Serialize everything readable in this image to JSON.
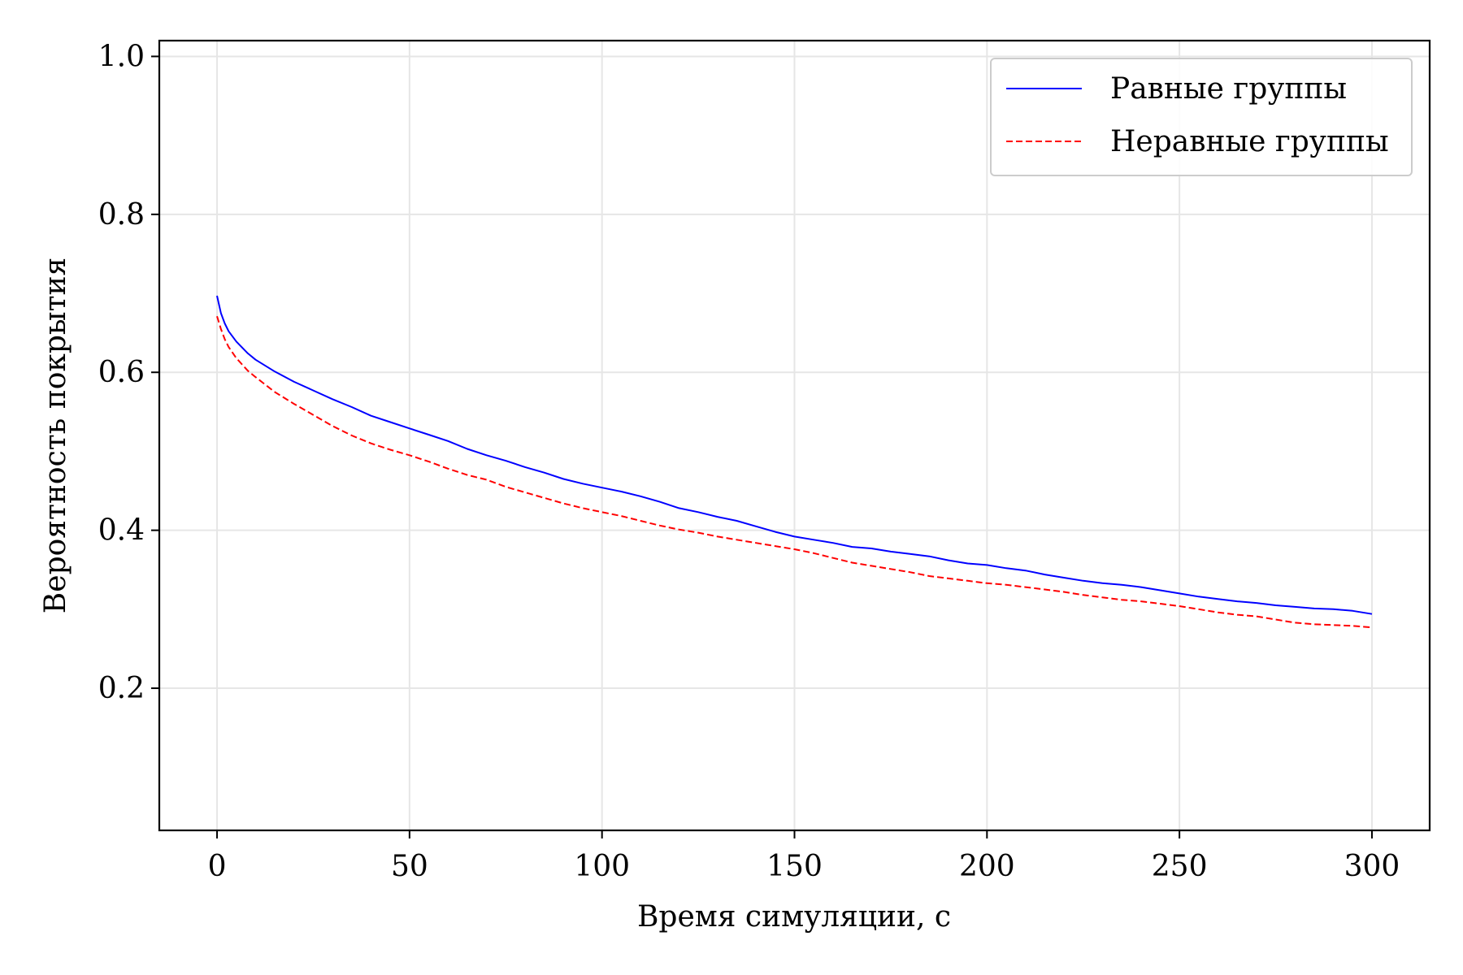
{
  "chart_data": {
    "type": "line",
    "title": "",
    "xlabel": "Время симуляции, с",
    "ylabel": "Вероятность покрытия",
    "xlim": [
      -15,
      315
    ],
    "ylim": [
      0.02,
      1.02
    ],
    "xticks": [
      0,
      50,
      100,
      150,
      200,
      250,
      300
    ],
    "xtick_labels": [
      "0",
      "50",
      "100",
      "150",
      "200",
      "250",
      "300"
    ],
    "yticks": [
      0.2,
      0.4,
      0.6,
      0.8,
      1.0
    ],
    "ytick_labels": [
      "0.2",
      "0.4",
      "0.6",
      "0.8",
      "1.0"
    ],
    "grid": true,
    "legend_position": "top-right",
    "series": [
      {
        "name": "Равные группы",
        "color": "#0000ff",
        "style": "solid",
        "x": [
          0,
          1,
          2,
          3,
          5,
          8,
          10,
          15,
          20,
          25,
          30,
          35,
          40,
          45,
          50,
          55,
          60,
          65,
          70,
          75,
          80,
          85,
          90,
          95,
          100,
          105,
          110,
          115,
          120,
          125,
          130,
          135,
          140,
          145,
          150,
          155,
          160,
          165,
          170,
          175,
          180,
          185,
          190,
          195,
          200,
          205,
          210,
          215,
          220,
          225,
          230,
          235,
          240,
          245,
          250,
          255,
          260,
          265,
          270,
          275,
          280,
          285,
          290,
          295,
          300
        ],
        "y": [
          0.697,
          0.675,
          0.662,
          0.652,
          0.639,
          0.624,
          0.616,
          0.601,
          0.588,
          0.577,
          0.566,
          0.556,
          0.545,
          0.537,
          0.529,
          0.521,
          0.513,
          0.503,
          0.495,
          0.488,
          0.48,
          0.473,
          0.465,
          0.459,
          0.454,
          0.449,
          0.443,
          0.436,
          0.428,
          0.423,
          0.417,
          0.412,
          0.405,
          0.398,
          0.392,
          0.388,
          0.384,
          0.379,
          0.377,
          0.373,
          0.37,
          0.367,
          0.362,
          0.358,
          0.356,
          0.352,
          0.349,
          0.344,
          0.34,
          0.336,
          0.333,
          0.331,
          0.328,
          0.324,
          0.32,
          0.316,
          0.313,
          0.31,
          0.308,
          0.305,
          0.303,
          0.301,
          0.3,
          0.298,
          0.294
        ]
      },
      {
        "name": "Неравные группы",
        "color": "#ff0000",
        "style": "dashed",
        "x": [
          0,
          1,
          2,
          3,
          5,
          8,
          10,
          15,
          20,
          25,
          30,
          35,
          40,
          45,
          50,
          55,
          60,
          65,
          70,
          75,
          80,
          85,
          90,
          95,
          100,
          105,
          110,
          115,
          120,
          125,
          130,
          135,
          140,
          145,
          150,
          155,
          160,
          165,
          170,
          175,
          180,
          185,
          190,
          195,
          200,
          205,
          210,
          215,
          220,
          225,
          230,
          235,
          240,
          245,
          250,
          255,
          260,
          265,
          270,
          275,
          280,
          285,
          290,
          295,
          300
        ],
        "y": [
          0.671,
          0.655,
          0.642,
          0.632,
          0.618,
          0.602,
          0.594,
          0.575,
          0.56,
          0.546,
          0.532,
          0.52,
          0.51,
          0.502,
          0.495,
          0.487,
          0.478,
          0.47,
          0.464,
          0.455,
          0.448,
          0.441,
          0.434,
          0.428,
          0.423,
          0.418,
          0.412,
          0.406,
          0.401,
          0.397,
          0.392,
          0.388,
          0.384,
          0.38,
          0.376,
          0.371,
          0.365,
          0.359,
          0.355,
          0.351,
          0.347,
          0.342,
          0.339,
          0.336,
          0.333,
          0.331,
          0.328,
          0.325,
          0.322,
          0.318,
          0.315,
          0.312,
          0.31,
          0.307,
          0.304,
          0.3,
          0.296,
          0.293,
          0.291,
          0.287,
          0.283,
          0.281,
          0.28,
          0.279,
          0.277
        ]
      }
    ]
  }
}
